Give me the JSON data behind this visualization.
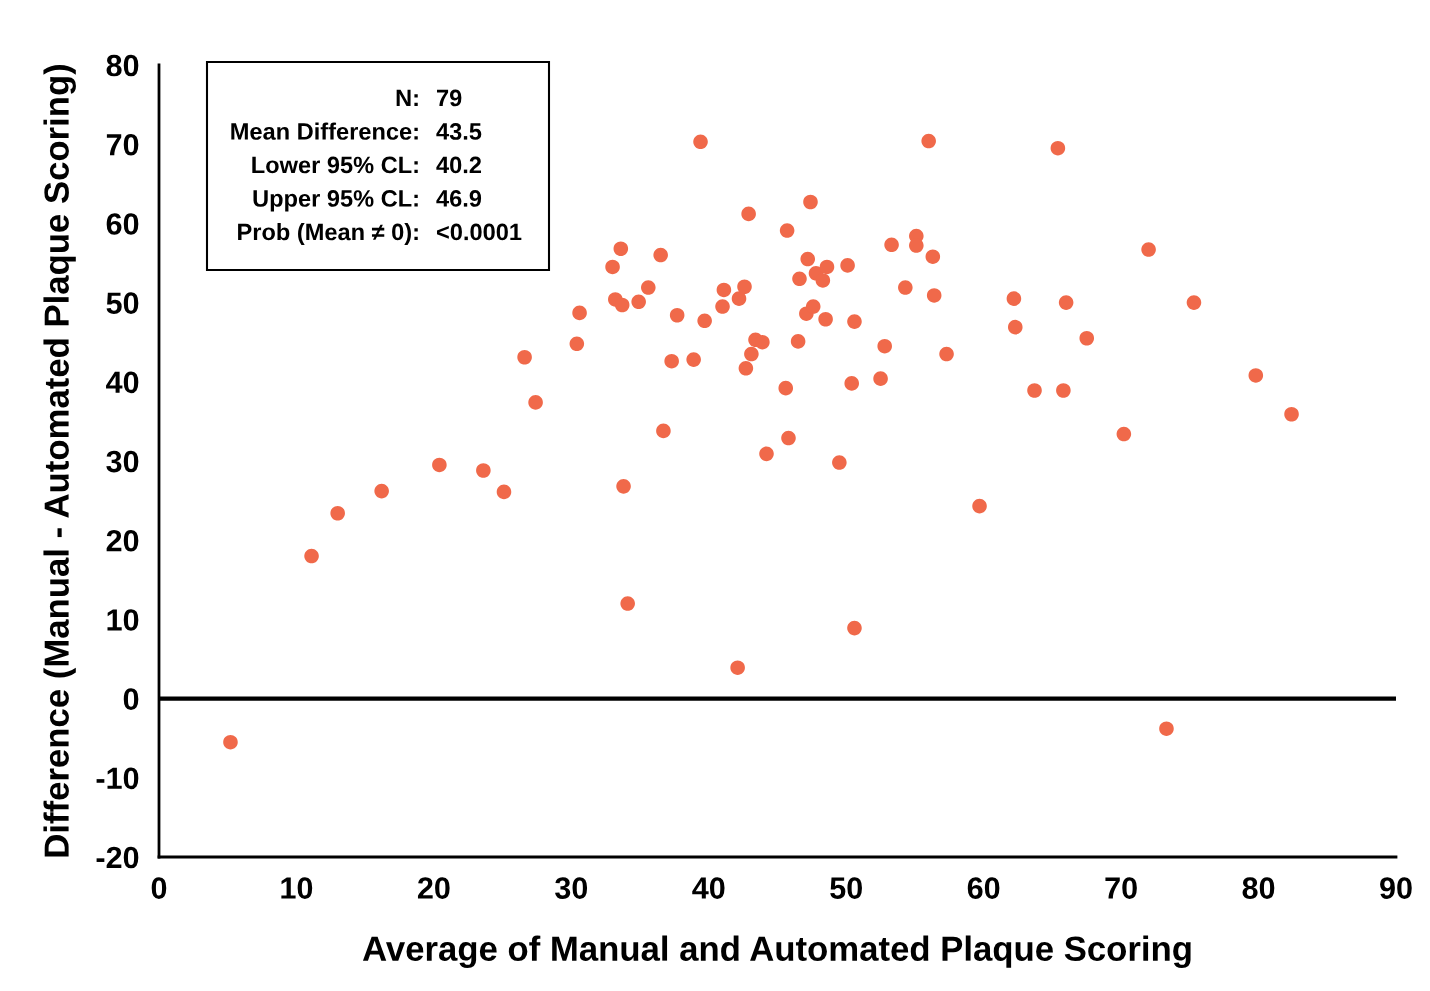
{
  "chart_data": {
    "type": "scatter",
    "xlabel": "Average of Manual and Automated Plaque Scoring",
    "ylabel": "Difference (Manual - Automated Plaque Scoring)",
    "x": [
      5.2,
      11.1,
      13.0,
      16.2,
      20.4,
      23.6,
      25.1,
      26.6,
      27.4,
      30.4,
      30.6,
      33.0,
      33.2,
      33.6,
      33.7,
      33.8,
      34.1,
      34.9,
      35.6,
      36.5,
      36.7,
      37.3,
      37.7,
      38.9,
      39.4,
      39.7,
      41.0,
      41.1,
      42.1,
      42.2,
      42.6,
      42.7,
      42.9,
      43.1,
      43.4,
      43.9,
      44.2,
      45.6,
      45.7,
      45.8,
      46.5,
      46.6,
      47.1,
      47.2,
      47.4,
      47.6,
      47.8,
      48.3,
      48.5,
      48.6,
      49.5,
      50.1,
      50.4,
      50.6,
      50.6,
      52.5,
      52.8,
      53.3,
      54.3,
      55.1,
      55.1,
      56.0,
      56.3,
      56.4,
      57.3,
      59.7,
      62.2,
      62.3,
      63.7,
      65.4,
      65.8,
      66.0,
      67.5,
      70.2,
      72.0,
      73.3,
      75.3,
      79.8,
      82.4
    ],
    "values": [
      -5.5,
      18.0,
      23.4,
      26.2,
      29.5,
      28.8,
      26.1,
      43.1,
      37.4,
      44.8,
      48.7,
      54.5,
      50.4,
      56.8,
      49.7,
      26.8,
      12.0,
      50.1,
      51.9,
      56.0,
      33.8,
      42.6,
      48.4,
      42.8,
      70.3,
      47.7,
      49.5,
      51.6,
      3.9,
      50.5,
      52.0,
      41.7,
      61.2,
      43.5,
      45.3,
      45.0,
      30.9,
      39.2,
      59.1,
      32.9,
      45.1,
      53.0,
      48.6,
      55.5,
      62.7,
      49.5,
      53.7,
      52.8,
      47.9,
      54.5,
      29.8,
      54.7,
      39.8,
      8.9,
      47.6,
      40.4,
      44.5,
      57.3,
      51.9,
      58.4,
      57.2,
      70.4,
      55.8,
      50.9,
      43.5,
      24.3,
      50.5,
      46.9,
      38.9,
      69.5,
      38.9,
      50.0,
      45.5,
      33.4,
      56.7,
      -3.8,
      50.0,
      40.8,
      35.9
    ],
    "color": "#f0694a",
    "marker": "circle",
    "xlim": [
      0,
      90
    ],
    "xticks": [
      0,
      10,
      20,
      30,
      40,
      50,
      60,
      70,
      80,
      90
    ],
    "ylim": [
      -20,
      80
    ],
    "yticks": [
      -20,
      -10,
      0,
      10,
      20,
      30,
      40,
      50,
      60,
      70,
      80
    ],
    "grid": false,
    "ref_lines": [
      {
        "axis": "y",
        "value": 0,
        "color": "#000000",
        "line_style": "solid"
      }
    ],
    "annotations": [
      "N: 79",
      "Mean Difference: 43.5",
      "Lower 95% CL: 40.2",
      "Upper 95% CL: 46.9",
      "Prob (Mean ≠ 0): <0.0001"
    ]
  }
}
